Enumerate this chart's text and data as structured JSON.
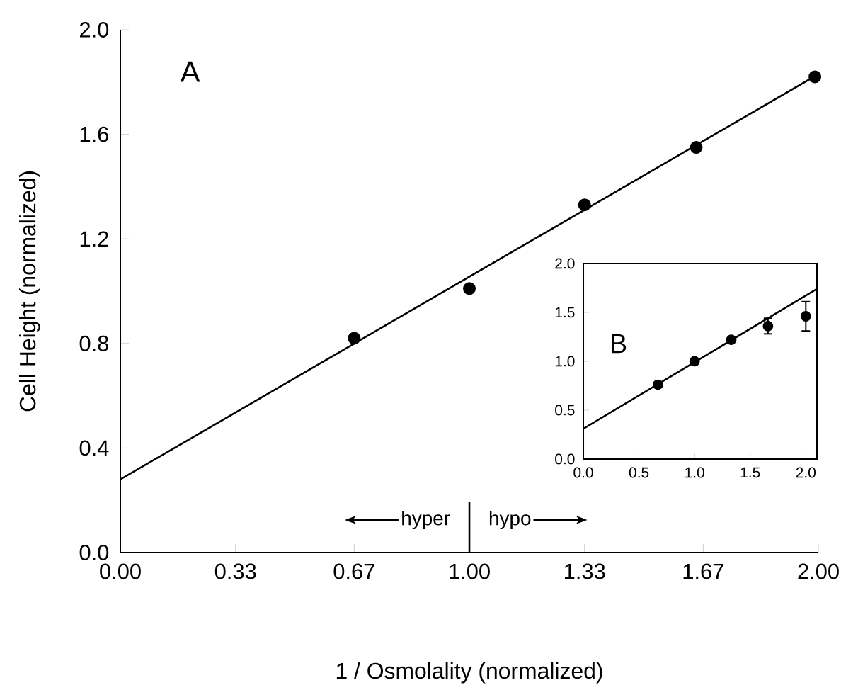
{
  "chart_data": [
    {
      "type": "scatter",
      "xlabel": "1 / Osmolality (normalized)",
      "ylabel": "Cell Height (normalized)",
      "xlim": [
        0,
        2
      ],
      "ylim": [
        0,
        2
      ],
      "xticks": [
        {
          "value": 0,
          "label": "0.00"
        },
        0.33,
        0.67,
        {
          "value": 1,
          "label": "1.00"
        },
        1.33,
        1.67,
        {
          "value": 2,
          "label": "2.00"
        }
      ],
      "yticks": [
        {
          "value": 0,
          "label": "0.0"
        },
        0.4,
        0.8,
        1.2,
        1.6,
        {
          "value": 2,
          "label": "2.0"
        }
      ],
      "series": [
        {
          "color": "#000000",
          "marker": "circle",
          "x": [
            0.67,
            1.0,
            1.33,
            1.65,
            1.99
          ],
          "values": [
            0.82,
            1.01,
            1.33,
            1.55,
            1.82
          ]
        },
        {
          "type": "line",
          "color": "#000000",
          "marker": "none",
          "x": [
            0,
            2
          ],
          "values": [
            0.28,
            1.83
          ]
        }
      ],
      "ref_lines": [
        {
          "axis": "x",
          "value": 1
        }
      ],
      "annotations": [
        "A",
        "hyper",
        "hypo"
      ]
    },
    {
      "type": "scatter",
      "xlim": [
        0,
        2.1
      ],
      "ylim": [
        0,
        2
      ],
      "xticks": [
        {
          "value": 0,
          "label": "0.0"
        },
        0.5,
        {
          "value": 1,
          "label": "1.0"
        },
        1.5,
        {
          "value": 2,
          "label": "2.0"
        }
      ],
      "yticks": [
        {
          "value": 0,
          "label": "0.0"
        },
        0.5,
        {
          "value": 1,
          "label": "1.0"
        },
        1.5,
        {
          "value": 2,
          "label": "2.0"
        }
      ],
      "series": [
        {
          "color": "#000000",
          "marker": "circle",
          "x": [
            0.67,
            1.0,
            1.33,
            1.66,
            2.0
          ],
          "values": [
            0.76,
            1.0,
            1.22,
            1.36,
            1.46
          ],
          "errors": [
            null,
            null,
            null,
            0.08,
            0.15
          ]
        },
        {
          "type": "line",
          "color": "#000000",
          "marker": "none",
          "x": [
            0,
            2.1
          ],
          "values": [
            0.31,
            1.74
          ]
        }
      ],
      "annotations": [
        "B"
      ]
    }
  ]
}
